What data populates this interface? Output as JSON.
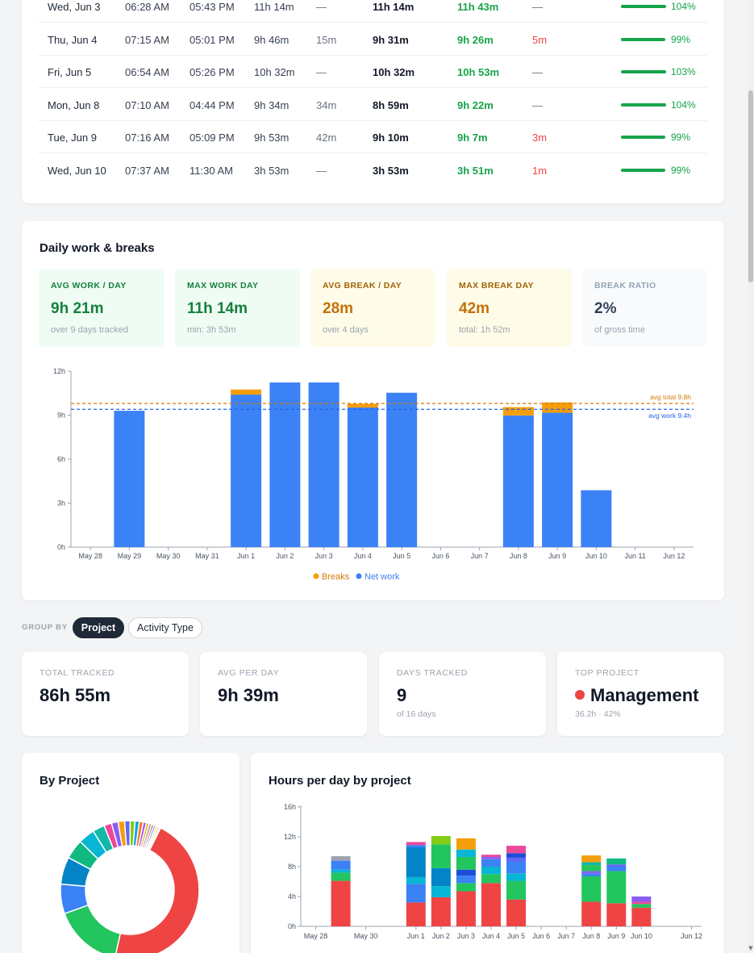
{
  "table": {
    "rows": [
      {
        "date": "Wed, Jun 3",
        "in": "06:28 AM",
        "out": "05:43 PM",
        "gross": "11h 14m",
        "break": "—",
        "net": "11h 14m",
        "target": "11h 43m",
        "over": "—",
        "pct": "104%",
        "progress": 1.04
      },
      {
        "date": "Thu, Jun 4",
        "in": "07:15 AM",
        "out": "05:01 PM",
        "gross": "9h 46m",
        "break": "15m",
        "net": "9h 31m",
        "target": "9h 26m",
        "over": "5m",
        "pct": "99%",
        "progress": 0.99
      },
      {
        "date": "Fri, Jun 5",
        "in": "06:54 AM",
        "out": "05:26 PM",
        "gross": "10h 32m",
        "break": "—",
        "net": "10h 32m",
        "target": "10h 53m",
        "over": "—",
        "pct": "103%",
        "progress": 1.03
      },
      {
        "date": "Mon, Jun 8",
        "in": "07:10 AM",
        "out": "04:44 PM",
        "gross": "9h 34m",
        "break": "34m",
        "net": "8h 59m",
        "target": "9h 22m",
        "over": "—",
        "pct": "104%",
        "progress": 1.04
      },
      {
        "date": "Tue, Jun 9",
        "in": "07:16 AM",
        "out": "05:09 PM",
        "gross": "9h 53m",
        "break": "42m",
        "net": "9h 10m",
        "target": "9h 7m",
        "over": "3m",
        "pct": "99%",
        "progress": 0.99
      },
      {
        "date": "Wed, Jun 10",
        "in": "07:37 AM",
        "out": "11:30 AM",
        "gross": "3h 53m",
        "break": "—",
        "net": "3h 53m",
        "target": "3h 51m",
        "over": "1m",
        "pct": "99%",
        "progress": 0.99
      }
    ]
  },
  "daily": {
    "title": "Daily work & breaks",
    "stats": [
      {
        "label": "AVG WORK / DAY",
        "value": "9h 21m",
        "sub": "over 9 days tracked"
      },
      {
        "label": "MAX WORK DAY",
        "value": "11h 14m",
        "sub": "min: 3h 53m"
      },
      {
        "label": "AVG BREAK / DAY",
        "value": "28m",
        "sub": "over 4 days"
      },
      {
        "label": "MAX BREAK DAY",
        "value": "42m",
        "sub": "total: 1h 52m"
      },
      {
        "label": "BREAK RATIO",
        "value": "2%",
        "sub": "of gross time"
      }
    ],
    "colors": {
      "work_bg": "#effcf3",
      "work_fg": "#15803d",
      "break_bg": "#fefce8",
      "break_fg": "#c2710c",
      "ratio_bg": "#f8fafc",
      "ratio_fg": "#334155"
    }
  },
  "chart_data": [
    {
      "type": "bar",
      "stacked": true,
      "categories": [
        "May 28",
        "May 29",
        "May 30",
        "May 31",
        "Jun 1",
        "Jun 2",
        "Jun 3",
        "Jun 4",
        "Jun 5",
        "Jun 6",
        "Jun 7",
        "Jun 8",
        "Jun 9",
        "Jun 10",
        "Jun 11",
        "Jun 12"
      ],
      "series": [
        {
          "name": "Net work",
          "color": "#3b82f6",
          "values": [
            0,
            9.3,
            0,
            0,
            10.4,
            11.23,
            11.23,
            9.52,
            10.53,
            0,
            0,
            8.98,
            9.17,
            3.88,
            0,
            0
          ]
        },
        {
          "name": "Breaks",
          "color": "#f59e0b",
          "values": [
            0,
            0,
            0,
            0,
            0.35,
            0,
            0,
            0.25,
            0,
            0,
            0,
            0.57,
            0.7,
            0,
            0,
            0
          ]
        }
      ],
      "yticks": [
        "0h",
        "3h",
        "6h",
        "9h",
        "12h"
      ],
      "ylim": [
        0,
        12
      ],
      "reference_lines": [
        {
          "label": "avg total 9.8h",
          "value": 9.8,
          "color": "#d97706"
        },
        {
          "label": "avg work 9.4h",
          "value": 9.4,
          "color": "#2563eb"
        }
      ],
      "legend_position": "bottom"
    },
    {
      "type": "pie",
      "title": "By Project",
      "donut": true,
      "slices": [
        {
          "value": 36.2,
          "color": "#ef4444"
        },
        {
          "value": 12.6,
          "color": "#22c55e"
        },
        {
          "value": 5.4,
          "color": "#3b82f6"
        },
        {
          "value": 5.0,
          "color": "#0284c7"
        },
        {
          "value": 3.6,
          "color": "#10b981"
        },
        {
          "value": 3.0,
          "color": "#06b6d4"
        },
        {
          "value": 2.2,
          "color": "#14b8a6"
        },
        {
          "value": 1.4,
          "color": "#ec4899"
        },
        {
          "value": 1.2,
          "color": "#8b5cf6"
        },
        {
          "value": 1.2,
          "color": "#f59e0b"
        },
        {
          "value": 1.0,
          "color": "#6366f1"
        },
        {
          "value": 0.9,
          "color": "#84cc16"
        },
        {
          "value": 0.8,
          "color": "#0ea5e9"
        },
        {
          "value": 0.7,
          "color": "#f97316"
        },
        {
          "value": 0.6,
          "color": "#a855f7"
        },
        {
          "value": 0.5,
          "color": "#eab308"
        },
        {
          "value": 0.5,
          "color": "#9ca3af"
        },
        {
          "value": 0.4,
          "color": "#f43f5e"
        },
        {
          "value": 0.4,
          "color": "#60a5fa"
        },
        {
          "value": 0.35,
          "color": "#fcd34d"
        },
        {
          "value": 0.3,
          "color": "#fb923c"
        },
        {
          "value": 0.25,
          "color": "#cbd5e1"
        }
      ]
    },
    {
      "type": "bar",
      "stacked": true,
      "title": "Hours per day by project",
      "categories": [
        "May 28",
        "May 29",
        "May 30",
        "May 31",
        "Jun 1",
        "Jun 2",
        "Jun 3",
        "Jun 4",
        "Jun 5",
        "Jun 6",
        "Jun 7",
        "Jun 8",
        "Jun 9",
        "Jun 10",
        "Jun 11",
        "Jun 12"
      ],
      "xtick_labels": [
        "May 28",
        "",
        "May 30",
        "",
        "Jun 1",
        "Jun 2",
        "Jun 3",
        "Jun 4",
        "Jun 5",
        "Jun 6",
        "Jun 7",
        "Jun 8",
        "Jun 9",
        "Jun 10",
        "",
        "Jun 12"
      ],
      "yticks": [
        "0h",
        "4h",
        "8h",
        "12h",
        "16h"
      ],
      "ylim": [
        0,
        16
      ],
      "stacks": [
        [],
        [
          {
            "v": 6.1,
            "c": "#ef4444"
          },
          {
            "v": 1.1,
            "c": "#22c55e"
          },
          {
            "v": 0.4,
            "c": "#06b6d4"
          },
          {
            "v": 1.2,
            "c": "#3b82f6"
          },
          {
            "v": 0.6,
            "c": "#9ca3af"
          }
        ],
        [],
        [],
        [
          {
            "v": 3.2,
            "c": "#ef4444"
          },
          {
            "v": 2.5,
            "c": "#3b82f6"
          },
          {
            "v": 0.9,
            "c": "#06b6d4"
          },
          {
            "v": 4.0,
            "c": "#0284c7"
          },
          {
            "v": 0.3,
            "c": "#3b82f6"
          },
          {
            "v": 0.4,
            "c": "#ec4899"
          }
        ],
        [
          {
            "v": 3.9,
            "c": "#ef4444"
          },
          {
            "v": 1.5,
            "c": "#06b6d4"
          },
          {
            "v": 2.4,
            "c": "#0284c7"
          },
          {
            "v": 3.2,
            "c": "#22c55e"
          },
          {
            "v": 1.1,
            "c": "#84cc16"
          }
        ],
        [
          {
            "v": 4.7,
            "c": "#ef4444"
          },
          {
            "v": 1.1,
            "c": "#22c55e"
          },
          {
            "v": 1.0,
            "c": "#3b82f6"
          },
          {
            "v": 0.8,
            "c": "#1d4ed8"
          },
          {
            "v": 1.7,
            "c": "#22c55e"
          },
          {
            "v": 1.0,
            "c": "#06b6d4"
          },
          {
            "v": 1.5,
            "c": "#f59e0b"
          }
        ],
        [
          {
            "v": 5.8,
            "c": "#ef4444"
          },
          {
            "v": 1.2,
            "c": "#22c55e"
          },
          {
            "v": 1.0,
            "c": "#06b6d4"
          },
          {
            "v": 1.0,
            "c": "#3b82f6"
          },
          {
            "v": 0.3,
            "c": "#8b5cf6"
          },
          {
            "v": 0.3,
            "c": "#ec4899"
          }
        ],
        [
          {
            "v": 3.6,
            "c": "#ef4444"
          },
          {
            "v": 2.5,
            "c": "#22c55e"
          },
          {
            "v": 1.0,
            "c": "#06b6d4"
          },
          {
            "v": 1.6,
            "c": "#3b82f6"
          },
          {
            "v": 0.5,
            "c": "#6366f1"
          },
          {
            "v": 0.6,
            "c": "#1d4ed8"
          },
          {
            "v": 1.0,
            "c": "#ec4899"
          }
        ],
        [],
        [],
        [
          {
            "v": 3.3,
            "c": "#ef4444"
          },
          {
            "v": 3.4,
            "c": "#22c55e"
          },
          {
            "v": 0.4,
            "c": "#3b82f6"
          },
          {
            "v": 0.3,
            "c": "#8b5cf6"
          },
          {
            "v": 0.8,
            "c": "#22c55e"
          },
          {
            "v": 0.4,
            "c": "#14b8a6"
          },
          {
            "v": 0.9,
            "c": "#f59e0b"
          }
        ],
        [
          {
            "v": 3.1,
            "c": "#ef4444"
          },
          {
            "v": 4.3,
            "c": "#22c55e"
          },
          {
            "v": 0.6,
            "c": "#3b82f6"
          },
          {
            "v": 0.3,
            "c": "#6366f1"
          },
          {
            "v": 0.8,
            "c": "#10b981"
          }
        ],
        [
          {
            "v": 2.5,
            "c": "#ef4444"
          },
          {
            "v": 0.5,
            "c": "#22c55e"
          },
          {
            "v": 0.3,
            "c": "#ec4899"
          },
          {
            "v": 0.7,
            "c": "#8b5cf6"
          }
        ],
        [],
        []
      ]
    }
  ],
  "legend": {
    "breaks": "Breaks",
    "net": "Net work"
  },
  "groupby": {
    "label": "GROUP BY",
    "active": "Project",
    "other": "Activity Type"
  },
  "kpis": [
    {
      "label": "TOTAL TRACKED",
      "value": "86h 55m",
      "sub": ""
    },
    {
      "label": "AVG PER DAY",
      "value": "9h 39m",
      "sub": ""
    },
    {
      "label": "DAYS TRACKED",
      "value": "9",
      "sub": "of 16 days"
    },
    {
      "label": "TOP PROJECT",
      "value": "Management",
      "sub": "36.2h · 42%"
    }
  ],
  "by_project": {
    "title": "By Project"
  },
  "hours_by_project": {
    "title": "Hours per day by project"
  }
}
